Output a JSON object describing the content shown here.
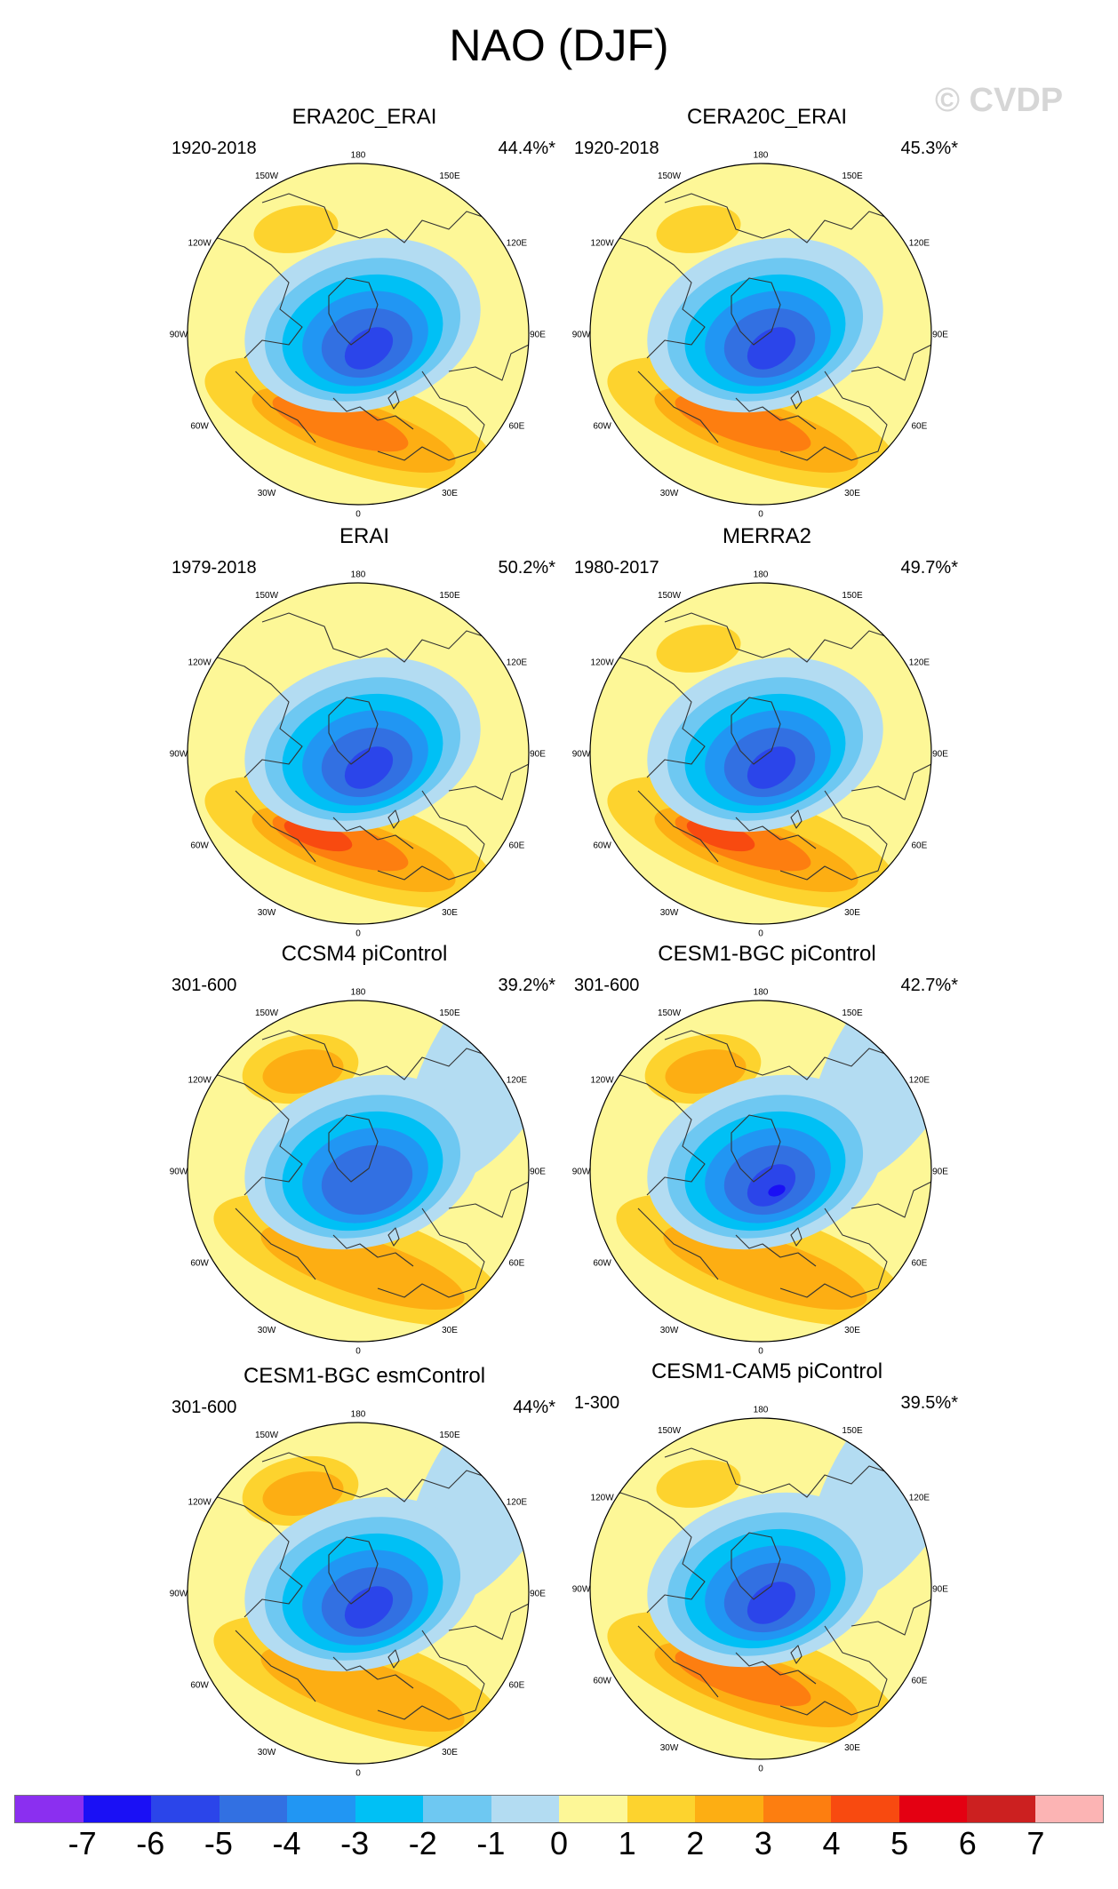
{
  "title": "NAO (DJF)",
  "watermark": "© CVDP",
  "lon_labels": [
    "180",
    "150E",
    "120E",
    "90E",
    "60E",
    "30E",
    "0",
    "30W",
    "60W",
    "90W",
    "120W",
    "150W"
  ],
  "panels": [
    {
      "title": "ERA20C_ERAI",
      "period": "1920-2018",
      "percent": "44.4%*"
    },
    {
      "title": "CERA20C_ERAI",
      "period": "1920-2018",
      "percent": "45.3%*"
    },
    {
      "title": "ERAI",
      "period": "1979-2018",
      "percent": "50.2%*"
    },
    {
      "title": "MERRA2",
      "period": "1980-2017",
      "percent": "49.7%*"
    },
    {
      "title": "CCSM4 piControl",
      "period": "301-600",
      "percent": "39.2%*"
    },
    {
      "title": "CESM1-BGC piControl",
      "period": "301-600",
      "percent": "42.7%*"
    },
    {
      "title": "CESM1-BGC esmControl",
      "period": "301-600",
      "percent": "44%*"
    },
    {
      "title": "CESM1-CAM5 piControl",
      "period": "1-300",
      "percent": "39.5%*"
    }
  ],
  "colorbar": {
    "labels": [
      "-7",
      "-6",
      "-5",
      "-4",
      "-3",
      "-2",
      "-1",
      "0",
      "1",
      "2",
      "3",
      "4",
      "5",
      "6",
      "7"
    ],
    "colors": [
      "#8b2ff0",
      "#1a10f5",
      "#2b45ea",
      "#3270e2",
      "#2196f3",
      "#00c0f5",
      "#6ec8f2",
      "#b3dcf2",
      "#fdf797",
      "#fdd32e",
      "#fdae13",
      "#fd7e10",
      "#f84a10",
      "#e40012",
      "#cc2020",
      "#fcb4b4"
    ]
  }
}
